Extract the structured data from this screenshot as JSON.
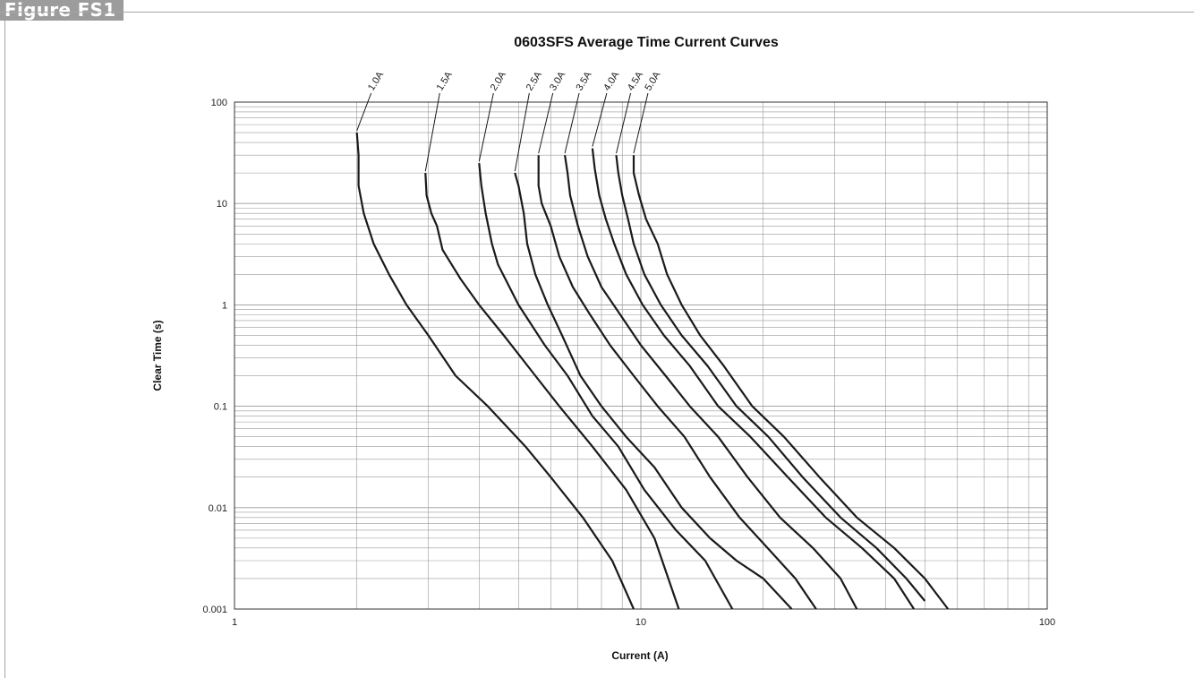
{
  "figure_label": "Figure FS1",
  "chart_data": {
    "type": "line",
    "title": "0603SFS Average Time Current Curves",
    "xlabel": "Current (A)",
    "ylabel": "Clear Time (s)",
    "x_scale": "log",
    "y_scale": "log",
    "xlim": [
      1,
      100
    ],
    "ylim": [
      0.001,
      100
    ],
    "x_ticks": [
      {
        "value": 1,
        "label": "1"
      },
      {
        "value": 10,
        "label": "10"
      },
      {
        "value": 100,
        "label": "100"
      }
    ],
    "y_ticks": [
      {
        "value": 100,
        "label": "100"
      },
      {
        "value": 10,
        "label": "10"
      },
      {
        "value": 1,
        "label": "1"
      },
      {
        "value": 0.1,
        "label": "0.1"
      },
      {
        "value": 0.01,
        "label": "0.01"
      },
      {
        "value": 0.001,
        "label": "0.001"
      }
    ],
    "grid": true,
    "series": [
      {
        "name": "1.0A",
        "x": [
          2.0,
          2.02,
          2.02,
          2.08,
          2.2,
          2.4,
          2.65,
          3.0,
          3.5,
          4.2,
          5.2,
          6.0,
          7.2,
          8.5,
          9.6
        ],
        "y": [
          50,
          30,
          15,
          8,
          4,
          2,
          1,
          0.5,
          0.2,
          0.1,
          0.04,
          0.02,
          0.008,
          0.003,
          0.001
        ]
      },
      {
        "name": "1.5A",
        "x": [
          2.95,
          2.97,
          3.05,
          3.15,
          3.25,
          3.6,
          4.0,
          4.6,
          5.5,
          6.3,
          7.6,
          9.2,
          10.8,
          12.4
        ],
        "y": [
          20,
          12,
          8,
          6,
          3.5,
          1.8,
          1,
          0.5,
          0.2,
          0.1,
          0.04,
          0.015,
          0.005,
          0.001
        ]
      },
      {
        "name": "2.0A",
        "x": [
          4.0,
          4.05,
          4.15,
          4.3,
          4.45,
          5.0,
          5.8,
          6.6,
          7.6,
          8.8,
          10.2,
          12.2,
          14.4,
          16.8
        ],
        "y": [
          25,
          15,
          8,
          4,
          2.5,
          1,
          0.4,
          0.2,
          0.08,
          0.04,
          0.015,
          0.006,
          0.003,
          0.001
        ]
      },
      {
        "name": "2.5A",
        "x": [
          4.9,
          5.0,
          5.15,
          5.25,
          5.5,
          5.9,
          6.4,
          7.1,
          8.0,
          9.2,
          10.8,
          12.6,
          14.8,
          17.2,
          20.0,
          23.5
        ],
        "y": [
          20,
          15,
          8,
          4,
          2,
          1,
          0.5,
          0.2,
          0.1,
          0.05,
          0.025,
          0.01,
          0.005,
          0.003,
          0.002,
          0.001
        ]
      },
      {
        "name": "3.0A",
        "x": [
          5.6,
          5.6,
          5.7,
          6.0,
          6.3,
          6.8,
          7.5,
          8.4,
          9.6,
          11.0,
          12.8,
          14.8,
          17.5,
          20.5,
          24.0,
          27.0
        ],
        "y": [
          30,
          15,
          10,
          6,
          3,
          1.5,
          0.8,
          0.4,
          0.2,
          0.1,
          0.05,
          0.02,
          0.008,
          0.004,
          0.002,
          0.001
        ]
      },
      {
        "name": "3.5A",
        "x": [
          6.5,
          6.6,
          6.7,
          7.0,
          7.4,
          8.0,
          8.9,
          10.0,
          11.5,
          13.2,
          15.5,
          18.3,
          22.0,
          26.5,
          31.0,
          34.0
        ],
        "y": [
          30,
          20,
          12,
          6,
          3,
          1.5,
          0.8,
          0.4,
          0.2,
          0.1,
          0.05,
          0.02,
          0.008,
          0.004,
          0.002,
          0.001
        ]
      },
      {
        "name": "4.0A",
        "x": [
          7.6,
          7.7,
          7.9,
          8.2,
          8.6,
          9.2,
          10.1,
          11.4,
          13.2,
          15.5,
          18.6,
          23.0,
          28.5,
          35.0,
          42.0,
          47.0
        ],
        "y": [
          35,
          22,
          12,
          7,
          4,
          2,
          1,
          0.5,
          0.25,
          0.1,
          0.05,
          0.02,
          0.008,
          0.004,
          0.002,
          0.001
        ]
      },
      {
        "name": "4.5A",
        "x": [
          8.7,
          8.8,
          9.0,
          9.3,
          9.6,
          10.2,
          11.2,
          12.6,
          14.6,
          17.2,
          20.6,
          25.0,
          31.0,
          38.0,
          45.0,
          50.0
        ],
        "y": [
          30,
          20,
          12,
          7,
          4,
          2,
          1,
          0.5,
          0.25,
          0.1,
          0.05,
          0.02,
          0.008,
          0.004,
          0.002,
          0.0012
        ]
      },
      {
        "name": "5.0A",
        "x": [
          9.6,
          9.6,
          9.9,
          10.3,
          11.0,
          11.6,
          12.6,
          14.0,
          16.0,
          18.8,
          22.5,
          27.5,
          34.0,
          42.0,
          50.0,
          57.0
        ],
        "y": [
          30,
          20,
          12,
          7,
          4,
          2,
          1,
          0.5,
          0.25,
          0.1,
          0.05,
          0.02,
          0.008,
          0.004,
          0.002,
          0.001
        ]
      }
    ]
  }
}
